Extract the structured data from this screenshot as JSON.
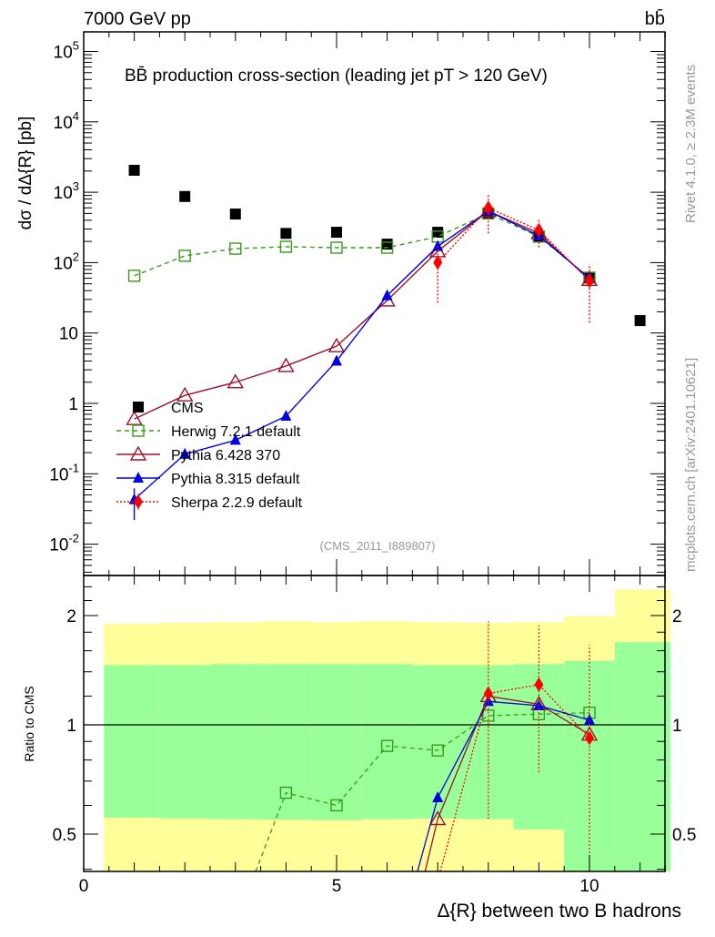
{
  "chart_data": [
    {
      "type": "scatter",
      "panel": "main",
      "header_left": "7000 GeV pp",
      "header_right": "bb̄",
      "title": "BB̄ production cross-section (leading jet pT > 120 GeV)",
      "analysis_tag": "(CMS_2011_I889807)",
      "side_text_top": "Rivet 4.1.0, ≥ 2.3M events",
      "side_text_bottom": "mcplots.cern.ch [arXiv:2401.10621]",
      "ylabel": "dσ / dΔ{R} [pb]",
      "yscale": "log",
      "ylim": [
        0.0045,
        160000
      ],
      "xlim": [
        0,
        11.75
      ],
      "ytick_labels": [
        "10^-2",
        "10^-1",
        "1",
        "10",
        "10^2",
        "10^3",
        "10^4",
        "10^5"
      ],
      "legend_position": "left",
      "series": [
        {
          "name": "CMS",
          "color": "#000000",
          "marker": "filled-square",
          "line": "none",
          "x": [
            1,
            2,
            3,
            4,
            5,
            6,
            7,
            8,
            9,
            10,
            11
          ],
          "y": [
            2050,
            870,
            490,
            260,
            270,
            183,
            270,
            500,
            234,
            61,
            15
          ]
        },
        {
          "name": "Herwig 7.2.1 default",
          "color": "#3a9a1a",
          "marker": "open-square",
          "line": "dashed",
          "x": [
            1,
            2,
            3,
            4,
            5,
            6,
            7,
            8,
            9,
            10
          ],
          "y": [
            65,
            125,
            158,
            168,
            163,
            163,
            234,
            500,
            234,
            61
          ]
        },
        {
          "name": "Pythia 6.428 370",
          "color": "#a0102a",
          "marker": "open-triangle",
          "line": "solid",
          "x": [
            1,
            2,
            3,
            4,
            5,
            6,
            7,
            8,
            9,
            10
          ],
          "y": [
            0.6,
            1.3,
            2.0,
            3.4,
            6.5,
            29,
            145,
            540,
            262,
            57
          ]
        },
        {
          "name": "Pythia 8.315 default",
          "color": "#0000e0",
          "marker": "filled-triangle",
          "line": "solid",
          "x": [
            1,
            2,
            3,
            4,
            5,
            6,
            7,
            8,
            9,
            10
          ],
          "y": [
            0.043,
            0.19,
            0.3,
            0.66,
            4.0,
            34,
            170,
            540,
            240,
            60
          ],
          "err_low": [
            0.022,
            null,
            null,
            null,
            null,
            null,
            null,
            null,
            null,
            null
          ],
          "err_high": [
            0.062,
            null,
            null,
            null,
            null,
            null,
            null,
            null,
            null,
            null
          ]
        },
        {
          "name": "Sherpa 2.2.9 default",
          "color": "#ff0000",
          "marker": "filled-diamond",
          "line": "dotted",
          "x": [
            7,
            8,
            9,
            10
          ],
          "y": [
            100,
            600,
            290,
            55
          ],
          "err_low": [
            27,
            260,
            165,
            14
          ],
          "err_high": [
            180,
            950,
            420,
            95
          ]
        }
      ]
    },
    {
      "type": "line",
      "panel": "ratio",
      "ylabel": "Ratio to CMS",
      "xlabel": "Δ{R} between two B hadrons",
      "yscale": "log",
      "ylim": [
        0.395,
        2.58
      ],
      "ytick_labels": [
        "0.5",
        "1",
        "2"
      ],
      "xtick_labels": [
        "0",
        "5",
        "10"
      ],
      "bands": {
        "bin_edges": [
          0.4,
          1.5,
          2.5,
          3.5,
          4.5,
          5.5,
          6.5,
          7.5,
          8.5,
          9.5,
          10.5,
          11.6
        ],
        "yellow_high": [
          1.9,
          1.91,
          1.92,
          1.93,
          1.92,
          1.93,
          1.92,
          1.91,
          1.92,
          1.99,
          2.36
        ],
        "yellow_low": [
          0.3,
          0.3,
          0.3,
          0.3,
          0.3,
          0.3,
          0.3,
          0.3,
          0.3,
          0.3,
          0.3
        ],
        "green_high": [
          1.46,
          1.46,
          1.47,
          1.47,
          1.47,
          1.47,
          1.46,
          1.46,
          1.47,
          1.5,
          1.69
        ],
        "green_low": [
          0.555,
          0.552,
          0.55,
          0.548,
          0.546,
          0.55,
          0.552,
          0.55,
          0.515,
          0.3,
          0.3
        ]
      },
      "series": [
        {
          "name": "Herwig 7.2.1 default",
          "color": "#3a9a1a",
          "x": [
            3.4,
            4,
            5,
            6,
            7,
            8,
            9,
            10
          ],
          "y": [
            0.3,
            0.65,
            0.6,
            0.875,
            0.85,
            1.06,
            1.07,
            1.08
          ]
        },
        {
          "name": "Pythia 6.428 370",
          "color": "#a0102a",
          "x": [
            6.75,
            7,
            8,
            9,
            10
          ],
          "y": [
            0.3,
            0.55,
            1.2,
            1.14,
            0.94
          ]
        },
        {
          "name": "Pythia 8.315 default",
          "color": "#0000e0",
          "x": [
            6.6,
            7,
            8,
            9,
            10
          ],
          "y": [
            0.3,
            0.63,
            1.16,
            1.13,
            1.03
          ]
        },
        {
          "name": "Sherpa 2.2.9 default",
          "color": "#ff0000",
          "x": [
            7.05,
            8,
            9,
            10
          ],
          "y": [
            0.3,
            1.22,
            1.29,
            0.92
          ],
          "err_low": [
            null,
            0.55,
            0.74,
            0.3
          ],
          "err_high": [
            null,
            1.93,
            1.88,
            1.66
          ]
        }
      ]
    }
  ]
}
